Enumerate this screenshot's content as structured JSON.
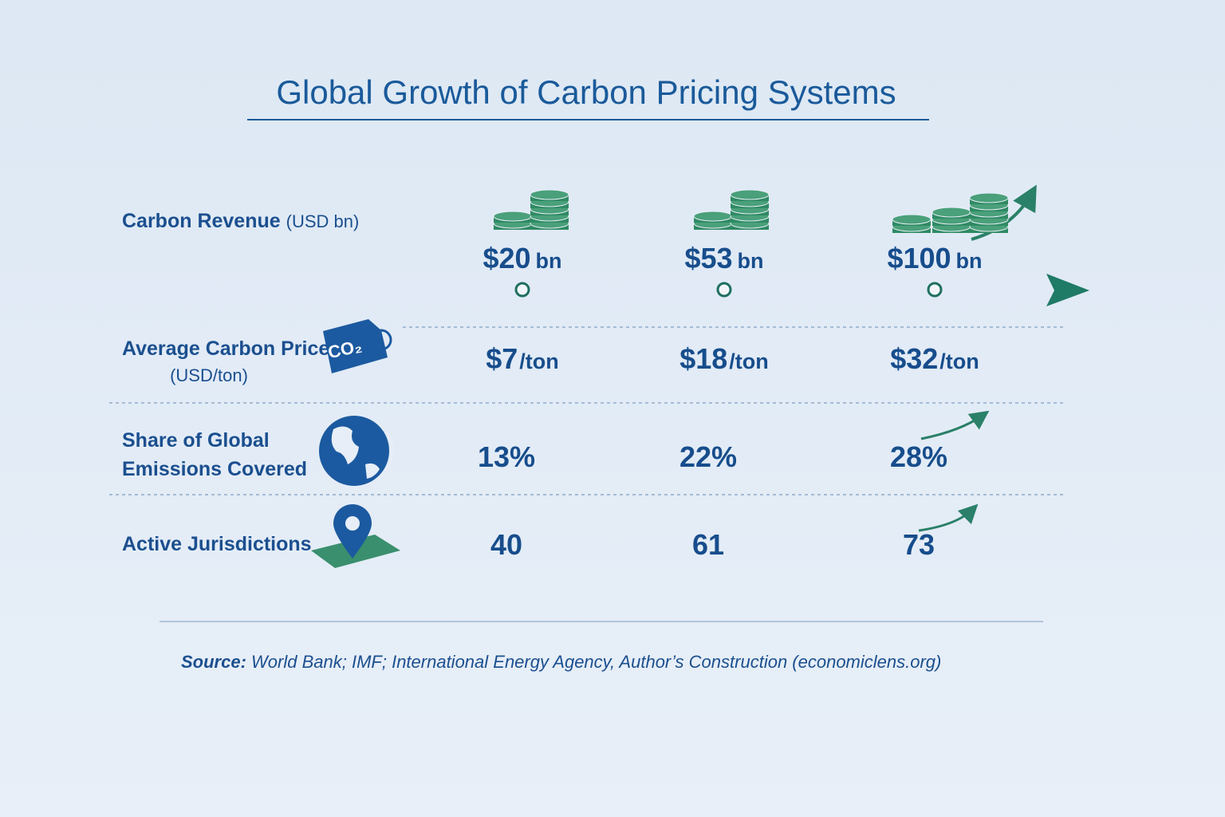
{
  "title": "Global Growth of Carbon Pricing Systems",
  "rows": [
    {
      "label": [
        "Carbon Revenue"
      ],
      "unit": "(USD bn)",
      "values": [
        {
          "amount": "$20",
          "unit": "bn"
        },
        {
          "amount": "$53",
          "unit": "bn"
        },
        {
          "amount": "$100",
          "unit": "bn"
        }
      ]
    },
    {
      "label": [
        "Average Carbon Price"
      ],
      "unit": "(USD/ton)",
      "icon_text": "CO₂",
      "values": [
        {
          "amount": "$7",
          "unit": "/ton"
        },
        {
          "amount": "$18",
          "unit": "/ton"
        },
        {
          "amount": "$32",
          "unit": "/ton"
        }
      ]
    },
    {
      "label": [
        "Share of Global",
        "Emissions Covered"
      ],
      "values": [
        {
          "amount": "13%"
        },
        {
          "amount": "22%"
        },
        {
          "amount": "28%"
        }
      ]
    },
    {
      "label": [
        "Active Jurisdictions"
      ],
      "values": [
        {
          "amount": "40"
        },
        {
          "amount": "61"
        },
        {
          "amount": "73"
        }
      ]
    }
  ],
  "source": {
    "label": "Source:",
    "text": "World Bank; IMF; International Energy Agency, Author’s Construction (economiclens.org)"
  }
}
